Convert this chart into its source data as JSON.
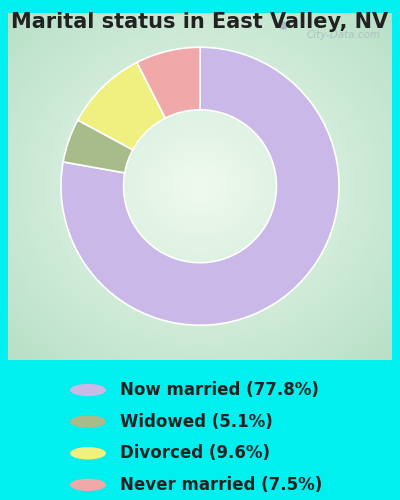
{
  "title": "Marital status in East Valley, NV",
  "slices": [
    77.8,
    5.1,
    9.6,
    7.5
  ],
  "labels": [
    "Now married (77.8%)",
    "Widowed (5.1%)",
    "Divorced (9.6%)",
    "Never married (7.5%)"
  ],
  "colors": [
    "#c9b8e8",
    "#a8bb8a",
    "#f0f080",
    "#f0a8a8"
  ],
  "outer_background": "#00f0f0",
  "title_fontsize": 15,
  "legend_fontsize": 12,
  "watermark": "City-Data.com",
  "start_angle": 90,
  "donut_width": 0.45,
  "title_color": "#222222"
}
